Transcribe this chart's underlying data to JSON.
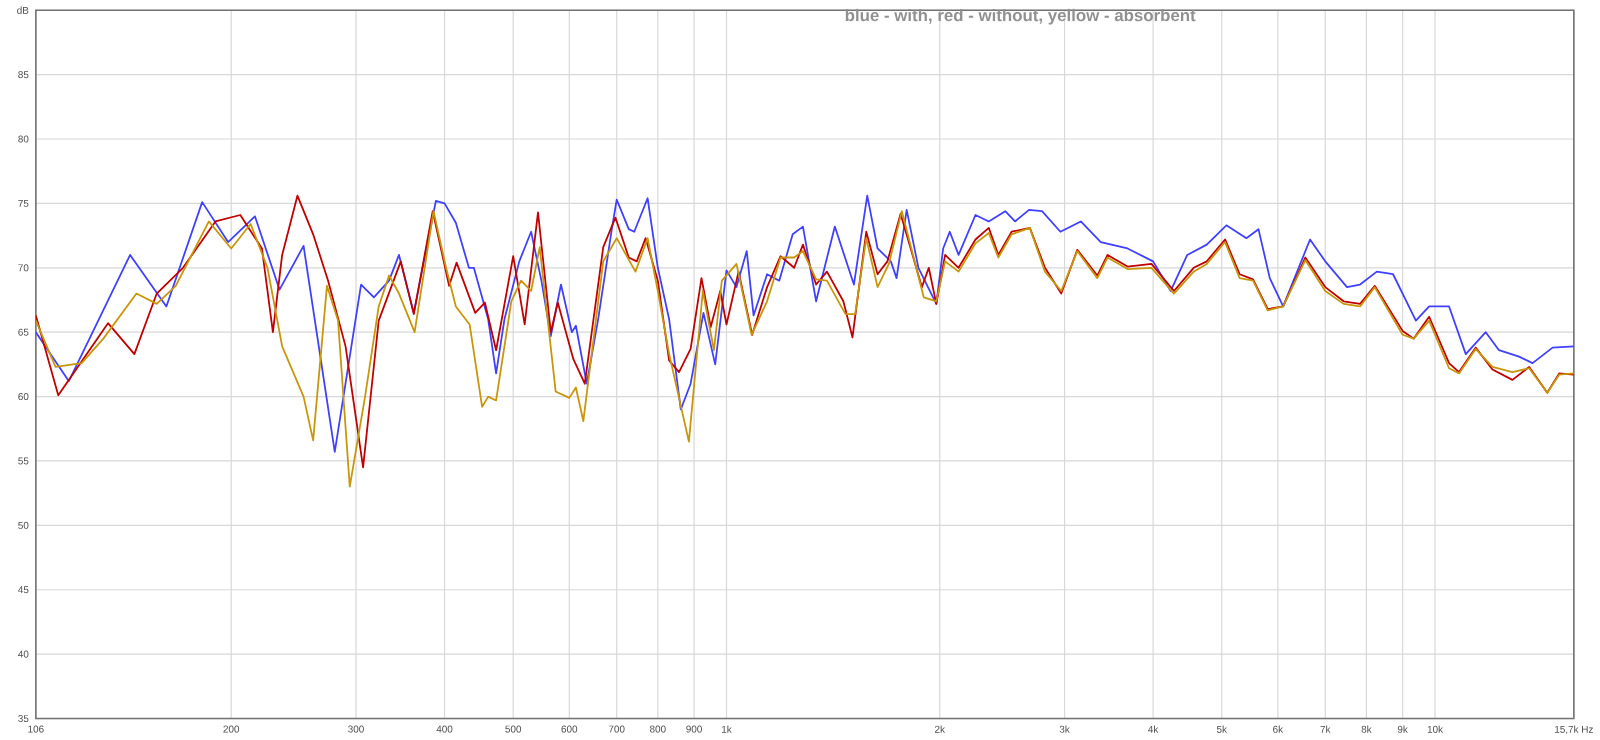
{
  "chart_data": {
    "type": "line",
    "title": "blue - with, red - without, yellow - absorbent",
    "log": "x",
    "grid": true,
    "marker": "none",
    "line_style": "solid",
    "xlim": [
      106,
      15700
    ],
    "ylim": [
      35,
      90
    ],
    "xticks": [
      106,
      200,
      300,
      400,
      500,
      600,
      700,
      800,
      900,
      {
        "value": 1000,
        "label": "1k"
      },
      {
        "value": 2000,
        "label": "2k"
      },
      {
        "value": 3000,
        "label": "3k"
      },
      {
        "value": 4000,
        "label": "4k"
      },
      {
        "value": 5000,
        "label": "5k"
      },
      {
        "value": 6000,
        "label": "6k"
      },
      {
        "value": 7000,
        "label": "7k"
      },
      {
        "value": 8000,
        "label": "8k"
      },
      {
        "value": 9000,
        "label": "9k"
      },
      {
        "value": 10000,
        "label": "10k"
      },
      {
        "value": 15700,
        "label": "15,7k Hz"
      }
    ],
    "yticks": [
      35,
      40,
      45,
      50,
      55,
      60,
      65,
      70,
      75,
      80,
      85,
      {
        "value": 90,
        "label": "dB"
      }
    ],
    "series": [
      {
        "color": "#4040ff",
        "x": [
          106,
          118,
          144,
          162,
          182,
          198,
          216,
          234,
          253,
          280,
          305,
          318,
          334,
          345,
          362,
          389,
          400,
          415,
          433,
          440,
          461,
          473,
          486,
          510,
          530,
          548,
          565,
          584,
          605,
          613,
          635,
          659,
          689,
          700,
          728,
          741,
          774,
          800,
          830,
          862,
          890,
          928,
          964,
          1000,
          1033,
          1068,
          1092,
          1141,
          1187,
          1240,
          1282,
          1338,
          1422,
          1513,
          1580,
          1634,
          1706,
          1738,
          1796,
          1866,
          1978,
          2022,
          2066,
          2126,
          2246,
          2345,
          2474,
          2554,
          2673,
          2788,
          2960,
          3163,
          3375,
          3682,
          4000,
          4236,
          4470,
          4762,
          5076,
          5417,
          5634,
          5845,
          6104,
          6662,
          7000,
          7513,
          7839,
          8276,
          8725,
          9396,
          9810,
          10466,
          11050,
          11790,
          12310,
          13140,
          13730,
          14650,
          15700
        ],
        "values": [
          65.0,
          61.2,
          71.0,
          67.0,
          75.1,
          72.0,
          74.0,
          68.3,
          71.7,
          55.7,
          68.7,
          67.7,
          69.0,
          71.0,
          66.5,
          75.2,
          75.0,
          73.5,
          70.0,
          70.0,
          66.0,
          61.8,
          66.0,
          70.5,
          72.8,
          69.0,
          64.7,
          68.7,
          65.0,
          65.5,
          61.0,
          66.0,
          73.0,
          75.3,
          73.0,
          72.8,
          75.4,
          70.0,
          66.0,
          59.0,
          61.0,
          66.5,
          62.5,
          69.8,
          68.5,
          71.3,
          66.3,
          69.5,
          69.0,
          72.6,
          73.2,
          67.4,
          73.2,
          68.7,
          75.6,
          71.5,
          70.5,
          69.2,
          74.5,
          70.0,
          67.2,
          71.5,
          72.8,
          71.0,
          74.1,
          73.6,
          74.4,
          73.6,
          74.5,
          74.4,
          72.8,
          73.6,
          72.0,
          71.5,
          70.5,
          68.2,
          71.0,
          71.8,
          73.3,
          72.3,
          73.0,
          69.2,
          67.0,
          72.2,
          70.5,
          68.5,
          68.7,
          69.7,
          69.5,
          65.9,
          67.0,
          67.0,
          63.3,
          65.0,
          63.6,
          63.1,
          62.6,
          63.8,
          63.9
        ]
      },
      {
        "color": "#c00000",
        "x": [
          106,
          114,
          134,
          146,
          157,
          171,
          190,
          206,
          221,
          229,
          236,
          248,
          261,
          274,
          290,
          307,
          323,
          347,
          362,
          385,
          406,
          416,
          442,
          456,
          473,
          500,
          519,
          542,
          565,
          578,
          608,
          631,
          670,
          697,
          728,
          747,
          769,
          800,
          830,
          857,
          890,
          922,
          950,
          980,
          1000,
          1040,
          1087,
          1141,
          1192,
          1246,
          1282,
          1338,
          1386,
          1462,
          1506,
          1575,
          1634,
          1687,
          1761,
          1887,
          1930,
          1978,
          2035,
          2126,
          2246,
          2345,
          2419,
          2526,
          2680,
          2815,
          2968,
          3127,
          3337,
          3450,
          3682,
          3980,
          4281,
          4564,
          4762,
          5054,
          5300,
          5535,
          5805,
          6104,
          6560,
          7000,
          7430,
          7840,
          8220,
          9000,
          9330,
          9810,
          10466,
          10810,
          11410,
          12050,
          12860,
          13580,
          14400,
          14970,
          15700
        ],
        "values": [
          66.3,
          60.1,
          65.7,
          63.3,
          68.0,
          70.0,
          73.6,
          74.1,
          71.5,
          65.0,
          71.0,
          75.6,
          72.6,
          69.0,
          63.9,
          54.5,
          65.9,
          70.5,
          66.4,
          74.4,
          68.6,
          70.4,
          66.5,
          67.3,
          63.6,
          70.9,
          65.6,
          74.3,
          65.0,
          67.3,
          62.9,
          61.0,
          71.6,
          73.9,
          70.8,
          70.5,
          72.3,
          69.0,
          62.8,
          61.9,
          63.7,
          69.2,
          65.4,
          68.2,
          65.6,
          69.7,
          64.8,
          68.5,
          70.9,
          70.0,
          71.8,
          68.7,
          69.7,
          67.4,
          64.6,
          72.8,
          69.5,
          70.5,
          74.2,
          68.5,
          70.0,
          67.2,
          71.0,
          70.0,
          72.2,
          73.1,
          71.0,
          72.8,
          73.1,
          70.0,
          68.0,
          71.4,
          69.4,
          71.0,
          70.1,
          70.3,
          68.2,
          70.0,
          70.5,
          72.2,
          69.5,
          69.1,
          66.8,
          67.0,
          70.8,
          68.5,
          67.4,
          67.2,
          68.6,
          65.1,
          64.5,
          66.2,
          62.6,
          61.9,
          63.8,
          62.1,
          61.3,
          62.3,
          60.3,
          61.8,
          61.7
        ]
      },
      {
        "color": "#c8960a",
        "x": [
          106,
          113,
          123,
          132,
          147,
          157,
          167,
          186,
          200,
          213,
          225,
          236,
          253,
          261,
          273,
          283,
          294,
          309,
          323,
          334,
          345,
          363,
          386,
          402,
          415,
          434,
          452,
          461,
          473,
          497,
          513,
          530,
          545,
          574,
          600,
          613,
          628,
          670,
          700,
          744,
          774,
          800,
          830,
          885,
          926,
          960,
          985,
          1033,
          1085,
          1141,
          1192,
          1246,
          1282,
          1338,
          1386,
          1472,
          1519,
          1575,
          1634,
          1695,
          1768,
          1899,
          1978,
          2035,
          2126,
          2246,
          2345,
          2419,
          2526,
          2680,
          2815,
          2968,
          3127,
          3337,
          3450,
          3682,
          3980,
          4281,
          4564,
          4762,
          5054,
          5300,
          5535,
          5805,
          6104,
          6560,
          7000,
          7430,
          7840,
          8220,
          9000,
          9330,
          9810,
          10466,
          10810,
          11410,
          12050,
          12860,
          13580,
          14400,
          14970,
          15700
        ],
        "values": [
          65.9,
          62.3,
          62.6,
          64.5,
          68.0,
          67.2,
          68.6,
          73.6,
          71.5,
          73.4,
          70.0,
          63.9,
          60.0,
          56.6,
          68.6,
          65.9,
          53.0,
          60.0,
          67.0,
          69.4,
          68.0,
          65.0,
          74.4,
          70.0,
          67.0,
          65.6,
          59.2,
          60.0,
          59.7,
          67.4,
          69.0,
          68.2,
          71.6,
          60.4,
          59.9,
          60.7,
          58.1,
          70.5,
          72.3,
          69.7,
          72.3,
          68.2,
          63.3,
          56.5,
          68.2,
          63.6,
          69.0,
          70.3,
          64.8,
          67.4,
          70.8,
          70.8,
          71.3,
          69.1,
          69.0,
          66.4,
          66.4,
          72.3,
          68.5,
          70.3,
          74.4,
          67.7,
          67.4,
          70.5,
          69.7,
          71.9,
          72.7,
          70.8,
          72.6,
          73.1,
          69.7,
          68.2,
          71.3,
          69.2,
          70.8,
          69.9,
          70.0,
          68.0,
          69.7,
          70.3,
          72.0,
          69.2,
          69.0,
          66.7,
          67.0,
          70.6,
          68.2,
          67.2,
          67.0,
          68.5,
          64.8,
          64.5,
          65.9,
          62.2,
          61.8,
          63.7,
          62.3,
          61.9,
          62.2,
          60.3,
          61.7,
          61.8
        ]
      }
    ]
  }
}
